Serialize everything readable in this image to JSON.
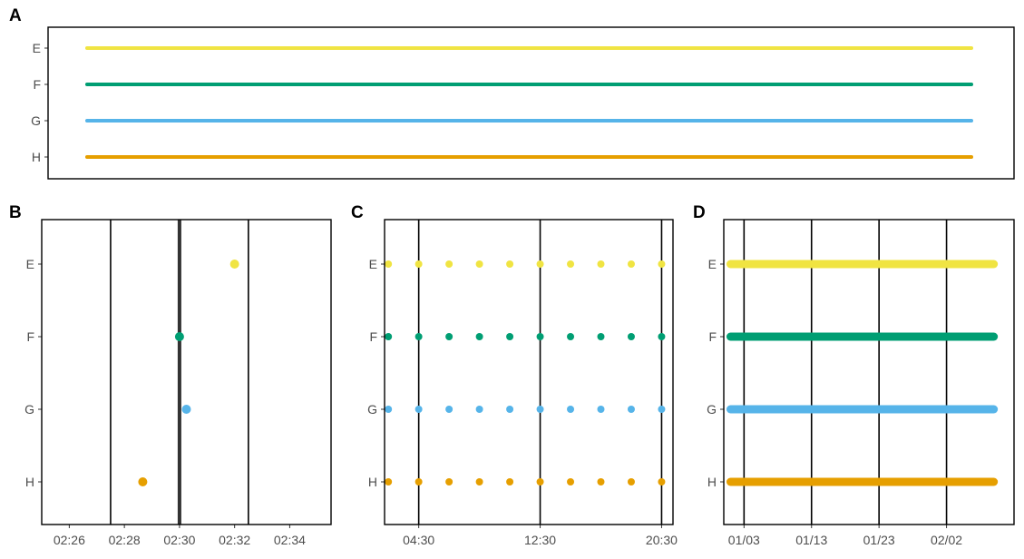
{
  "colors": {
    "E": "#f0e442",
    "F": "#009e73",
    "G": "#56b4e9",
    "H": "#e69f00",
    "frame": "#000000",
    "text": "#4d4d4d"
  },
  "chart_data": [
    {
      "panel": "A",
      "type": "line",
      "categories": [
        "E",
        "F",
        "G",
        "H"
      ],
      "x_ticks": [],
      "grid": false,
      "series": [
        {
          "name": "E",
          "x_range": [
            0,
            1
          ]
        },
        {
          "name": "F",
          "x_range": [
            0,
            1
          ]
        },
        {
          "name": "G",
          "x_range": [
            0,
            1
          ]
        },
        {
          "name": "H",
          "x_range": [
            0,
            1
          ]
        }
      ]
    },
    {
      "panel": "B",
      "type": "scatter",
      "categories": [
        "E",
        "F",
        "G",
        "H"
      ],
      "x_unit": "minutes",
      "xlim": [
        "02:25:00",
        "02:35:30"
      ],
      "x_ticks": [
        "02:26",
        "02:28",
        "02:30",
        "02:32",
        "02:34"
      ],
      "vlines": [
        "02:27:30",
        "02:30:00",
        "02:32:30"
      ],
      "highlight_vline": "02:30:00",
      "points": [
        {
          "category": "E",
          "x": "02:32:00"
        },
        {
          "category": "F",
          "x": "02:30:00"
        },
        {
          "category": "G",
          "x": "02:30:15"
        },
        {
          "category": "H",
          "x": "02:28:40"
        }
      ]
    },
    {
      "panel": "C",
      "type": "scatter",
      "categories": [
        "E",
        "F",
        "G",
        "H"
      ],
      "x_unit": "hours",
      "xlim": [
        "02:15",
        "21:15"
      ],
      "x_ticks": [
        "04:30",
        "12:30",
        "20:30"
      ],
      "vlines": [
        "04:30",
        "12:30",
        "20:30"
      ],
      "x": [
        "02:30",
        "04:30",
        "06:30",
        "08:30",
        "10:30",
        "12:30",
        "14:30",
        "16:30",
        "18:30",
        "20:30"
      ]
    },
    {
      "panel": "D",
      "type": "line",
      "categories": [
        "E",
        "F",
        "G",
        "H"
      ],
      "x_unit": "days",
      "xlim": [
        "12/31",
        "02/12"
      ],
      "x_ticks": [
        "01/03",
        "01/13",
        "01/23",
        "02/02"
      ],
      "vlines": [
        "01/03",
        "01/13",
        "01/23",
        "02/02"
      ],
      "x_range": [
        "01/01",
        "02/09"
      ]
    }
  ]
}
